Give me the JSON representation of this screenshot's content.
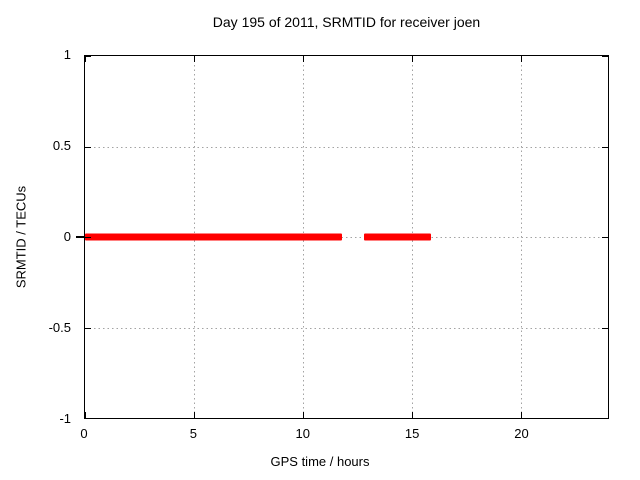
{
  "chart_data": {
    "type": "line",
    "title": "Day 195 of 2011, SRMTID for receiver joen",
    "xlabel": "GPS time / hours",
    "ylabel": "SRMTID / TECUs",
    "xlim": [
      0,
      24
    ],
    "ylim": [
      -1,
      1
    ],
    "xticks": [
      0,
      5,
      10,
      15,
      20
    ],
    "yticks": [
      1,
      0.5,
      0,
      -0.5,
      -1
    ],
    "grid": true,
    "legend_visible": false,
    "series": [
      {
        "name": "SRMTID",
        "color": "#ff0000",
        "style": "thick-horizontal-band",
        "value": 0,
        "segments": [
          {
            "x_start": 0,
            "x_end": 11.8,
            "y": 0
          },
          {
            "x_start": 12.8,
            "x_end": 15.9,
            "y": 0
          }
        ]
      }
    ]
  },
  "colors": {
    "background": "#ffffff",
    "border": "#000000",
    "grid": "#a3a3a3",
    "text": "#000000",
    "series": "#ff0000"
  }
}
